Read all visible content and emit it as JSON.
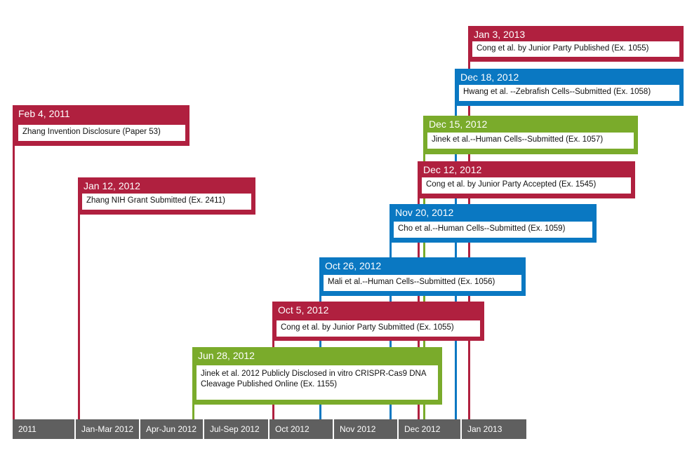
{
  "colors": {
    "red": "#b0203f",
    "blue": "#0a78c2",
    "green": "#7aab2b",
    "axis": "#5f5f5f"
  },
  "axis": {
    "segments": [
      "2011",
      "Jan-Mar 2012",
      "Apr-Jun 2012",
      "Jul-Sep 2012",
      "Oct 2012",
      "Nov 2012",
      "Dec 2012",
      "Jan 2013"
    ]
  },
  "events": [
    {
      "date": "Jan 3, 2013",
      "text": "Cong et al. by Junior Party Published (Ex. 1055)",
      "color": "red"
    },
    {
      "date": "Dec 18, 2012",
      "text": "Hwang et al. --Zebrafish Cells--Submitted (Ex. 1058)",
      "color": "blue"
    },
    {
      "date": "Feb 4, 2011",
      "text": "Zhang Invention Disclosure (Paper 53)",
      "color": "red"
    },
    {
      "date": "Dec 15, 2012",
      "text": "Jinek et al.--Human Cells--Submitted (Ex. 1057)",
      "color": "green"
    },
    {
      "date": "Dec 12, 2012",
      "text": "Cong et al. by Junior Party Accepted (Ex. 1545)",
      "color": "red"
    },
    {
      "date": "Jan 12, 2012",
      "text": "Zhang NIH Grant Submitted (Ex. 2411)",
      "color": "red"
    },
    {
      "date": "Nov 20, 2012",
      "text": "Cho et al.--Human Cells--Submitted (Ex. 1059)",
      "color": "blue"
    },
    {
      "date": "Oct 26, 2012",
      "text": "Mali et al.--Human Cells--Submitted (Ex. 1056)",
      "color": "blue"
    },
    {
      "date": "Oct 5, 2012",
      "text": "Cong et al. by Junior Party Submitted (Ex. 1055)",
      "color": "red"
    },
    {
      "date": "Jun 28, 2012",
      "text": "Jinek et al. 2012 Publicly Disclosed in vitro CRISPR-Cas9 DNA Cleavage Published Online (Ex. 1155)",
      "color": "green"
    }
  ]
}
